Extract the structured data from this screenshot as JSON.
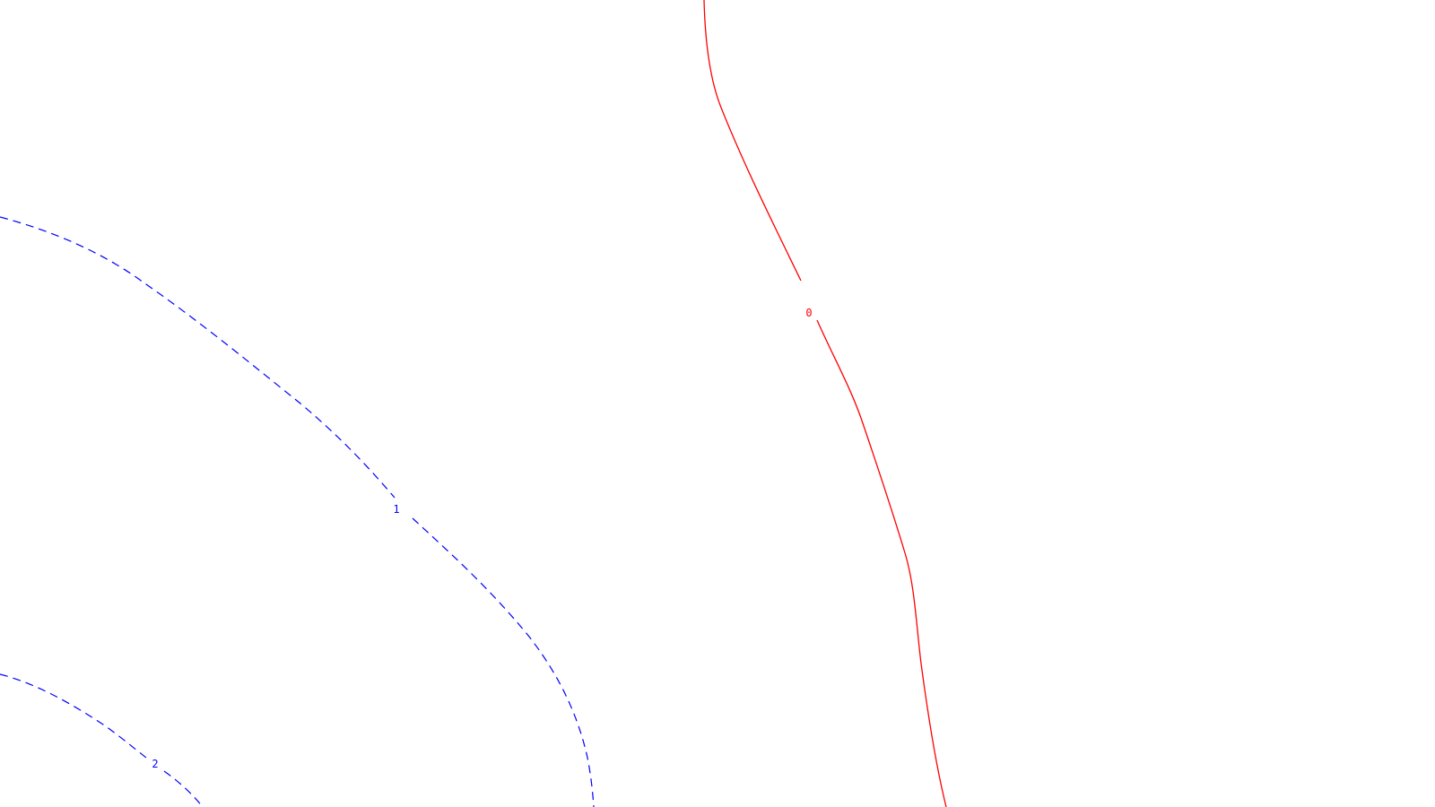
{
  "chart_data": {
    "type": "contour",
    "title": "",
    "xlabel": "",
    "ylabel": "",
    "grid": false,
    "axes_visible": false,
    "legend": "none",
    "series": [
      {
        "label": "0",
        "color": "#ff0000",
        "dash": "solid"
      },
      {
        "label": "1",
        "color": "#0000ff",
        "dash": "dashed"
      },
      {
        "label": "2",
        "color": "#0000ff",
        "dash": "dashed"
      }
    ]
  }
}
